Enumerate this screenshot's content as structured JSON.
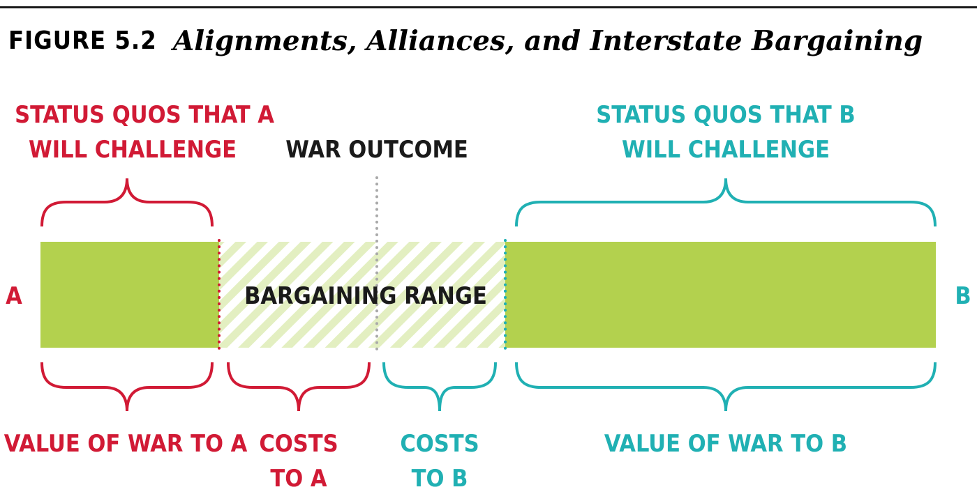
{
  "figure": {
    "number": "FIGURE 5.2",
    "title": "Alignments, Alliances, and Interstate Bargaining"
  },
  "colors": {
    "a": "#d11a35",
    "b": "#20b0b3",
    "bar": "#b3d14e",
    "hatch_light": "#e3efc1",
    "text": "#1a1a1a",
    "war_line": "#a9a9a9"
  },
  "diagram": {
    "endpoint_a": "A",
    "endpoint_b": "B",
    "bargaining_range": "BARGAINING RANGE",
    "war_outcome": "WAR OUTCOME",
    "status_quo_a": [
      "STATUS QUOS THAT A",
      "WILL CHALLENGE"
    ],
    "status_quo_b": [
      "STATUS QUOS THAT B",
      "WILL CHALLENGE"
    ],
    "value_war_a": "VALUE OF WAR TO A",
    "value_war_b": "VALUE OF WAR TO B",
    "costs_a": [
      "COSTS",
      "TO A"
    ],
    "costs_b": [
      "COSTS",
      "TO B"
    ]
  }
}
